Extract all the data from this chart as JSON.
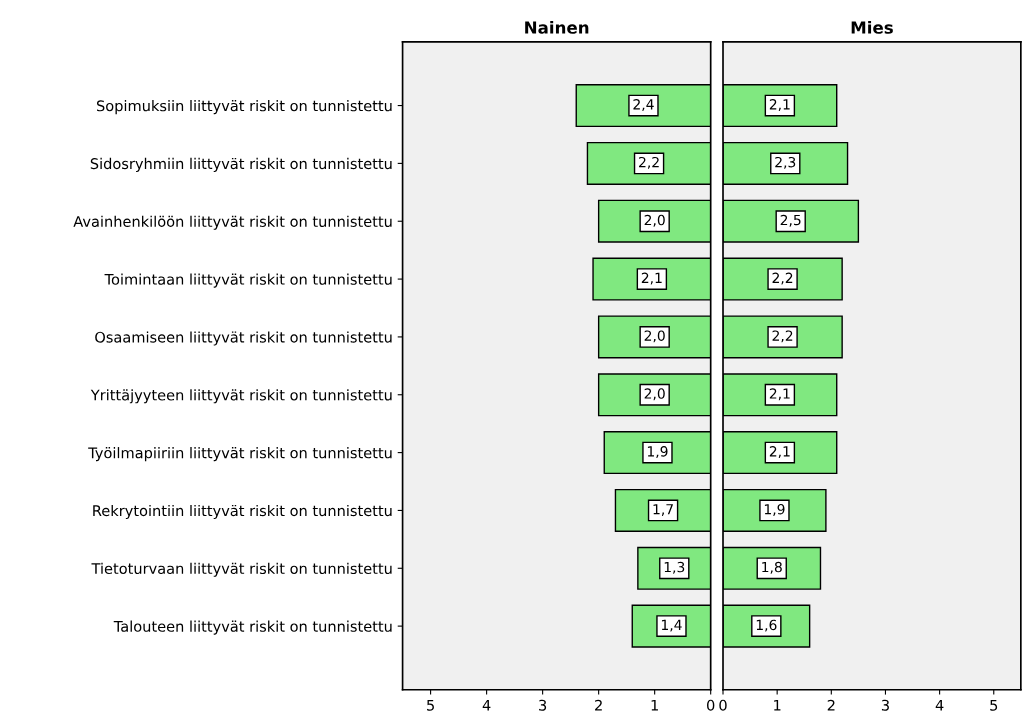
{
  "chart_data": [
    {
      "type": "bar",
      "orientation": "horizontal",
      "title": "Nainen",
      "categories": [
        "Sopimuksiin liittyvät riskit on tunnistettu",
        "Sidosryhmiin liittyvät riskit on tunnistettu",
        "Avainhenkilöön liittyvät riskit on tunnistettu",
        "Toimintaan liittyvät riskit on tunnistettu",
        "Osaamiseen liittyvät riskit on tunnistettu",
        "Yrittäjyyteen liittyvät riskit on tunnistettu",
        "Työilmapiiriin liittyvät riskit on tunnistettu",
        "Rekrytointiin liittyvät riskit on tunnistettu",
        "Tietoturvaan liittyvät riskit on tunnistettu",
        "Talouteen liittyvät riskit on tunnistettu"
      ],
      "values": [
        2.4,
        2.2,
        2.0,
        2.1,
        2.0,
        2.0,
        1.9,
        1.7,
        1.3,
        1.4
      ],
      "value_labels": [
        "2,4",
        "2,2",
        "2,0",
        "2,1",
        "2,0",
        "2,0",
        "1,9",
        "1,7",
        "1,3",
        "1,4"
      ],
      "color": "#80e880",
      "xlim": [
        5.5,
        0
      ],
      "xticks": [
        5,
        4,
        3,
        2,
        1,
        0
      ],
      "grid": false,
      "legend": false
    },
    {
      "type": "bar",
      "orientation": "horizontal",
      "title": "Mies",
      "categories": [
        null,
        null,
        null,
        null,
        null,
        null,
        null,
        null,
        null,
        null
      ],
      "values": [
        2.1,
        2.3,
        2.5,
        2.2,
        2.2,
        2.1,
        2.1,
        1.9,
        1.8,
        1.6
      ],
      "value_labels": [
        "2,1",
        "2,3",
        "2,5",
        "2,2",
        "2,2",
        "2,1",
        "2,1",
        "1,9",
        "1,8",
        "1,6"
      ],
      "color": "#80e880",
      "xlim": [
        0,
        5.5
      ],
      "xticks": [
        0,
        1,
        2,
        3,
        4,
        5
      ],
      "tick_labels": "x",
      "grid": false,
      "legend": false
    }
  ]
}
